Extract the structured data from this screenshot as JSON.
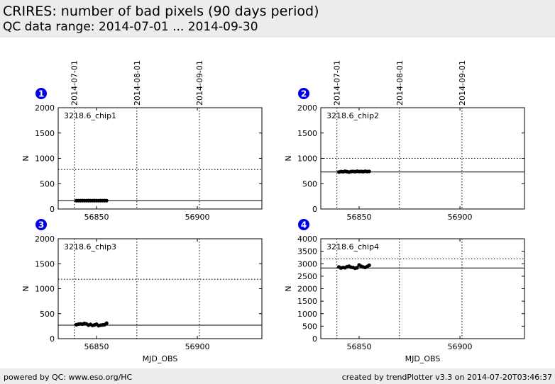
{
  "header": {
    "title": "CRIRES: number of bad pixels (90 days period)",
    "subtitle": "QC data range: 2014-07-01 ... 2014-09-30"
  },
  "footer": {
    "left": "powered by QC: www.eso.org/HC",
    "right": "created by trendPlotter v3.3 on 2014-07-20T03:46:37"
  },
  "colors": {
    "marker": "#000000",
    "badge": "#0000ee",
    "header_bg": "#ececec"
  },
  "chart_data": [
    {
      "type": "scatter",
      "panel": "1",
      "label": "3218.6_chip1",
      "xlabel": "",
      "ylabel": "N",
      "xlim": [
        56831,
        56932
      ],
      "ylim": [
        0,
        2000
      ],
      "yticks": [
        0,
        500,
        1000,
        1500,
        2000
      ],
      "xticks": [
        56850,
        56900
      ],
      "date_marks": [
        {
          "x": 56839,
          "label": "2014-07-01"
        },
        {
          "x": 56870,
          "label": "2014-08-01"
        },
        {
          "x": 56901,
          "label": "2014-09-01"
        }
      ],
      "reference_line": 165,
      "threshold_line": 780,
      "x": [
        56840,
        56841,
        56842,
        56843,
        56844,
        56845,
        56846,
        56847,
        56848,
        56849,
        56850,
        56851,
        56852,
        56853,
        56854,
        56855
      ],
      "y": [
        165,
        165,
        165,
        166,
        165,
        165,
        166,
        165,
        165,
        166,
        165,
        165,
        166,
        165,
        166,
        165
      ]
    },
    {
      "type": "scatter",
      "panel": "2",
      "label": "3218.6_chip2",
      "xlabel": "",
      "ylabel": "N",
      "xlim": [
        56831,
        56932
      ],
      "ylim": [
        0,
        2000
      ],
      "yticks": [
        0,
        500,
        1000,
        1500,
        2000
      ],
      "xticks": [
        56850,
        56900
      ],
      "date_marks": [
        {
          "x": 56839,
          "label": "2014-07-01"
        },
        {
          "x": 56870,
          "label": "2014-08-01"
        },
        {
          "x": 56901,
          "label": "2014-09-01"
        }
      ],
      "reference_line": 730,
      "threshold_line": 1000,
      "x": [
        56840,
        56841,
        56842,
        56843,
        56844,
        56845,
        56846,
        56847,
        56848,
        56849,
        56850,
        56851,
        56852,
        56853,
        56854,
        56855
      ],
      "y": [
        730,
        740,
        735,
        745,
        738,
        730,
        740,
        742,
        738,
        745,
        740,
        742,
        738,
        745,
        740,
        742
      ]
    },
    {
      "type": "scatter",
      "panel": "3",
      "label": "3218.6_chip3",
      "xlabel": "MJD_OBS",
      "ylabel": "N",
      "xlim": [
        56831,
        56932
      ],
      "ylim": [
        0,
        2000
      ],
      "yticks": [
        0,
        500,
        1000,
        1500,
        2000
      ],
      "xticks": [
        56850,
        56900
      ],
      "date_marks": [
        {
          "x": 56839,
          "label": "2014-07-01"
        },
        {
          "x": 56870,
          "label": "2014-08-01"
        },
        {
          "x": 56901,
          "label": "2014-09-01"
        }
      ],
      "reference_line": 270,
      "threshold_line": 1190,
      "x": [
        56840,
        56841,
        56842,
        56843,
        56844,
        56845,
        56846,
        56847,
        56848,
        56849,
        56850,
        56851,
        56852,
        56853,
        56854,
        56855
      ],
      "y": [
        280,
        290,
        295,
        290,
        305,
        295,
        270,
        285,
        265,
        275,
        290,
        260,
        270,
        275,
        280,
        310
      ]
    },
    {
      "type": "scatter",
      "panel": "4",
      "label": "3218.6_chip4",
      "xlabel": "MJD_OBS",
      "ylabel": "N",
      "xlim": [
        56831,
        56932
      ],
      "ylim": [
        0,
        4000
      ],
      "yticks": [
        0,
        500,
        1000,
        1500,
        2000,
        2500,
        3000,
        3500,
        4000
      ],
      "xticks": [
        56850,
        56900
      ],
      "date_marks": [
        {
          "x": 56839,
          "label": "2014-07-01"
        },
        {
          "x": 56870,
          "label": "2014-08-01"
        },
        {
          "x": 56901,
          "label": "2014-09-01"
        }
      ],
      "reference_line": 2830,
      "threshold_line": 3200,
      "x": [
        56840,
        56841,
        56842,
        56843,
        56844,
        56845,
        56846,
        56847,
        56848,
        56849,
        56850,
        56851,
        56852,
        56853,
        56854,
        56855
      ],
      "y": [
        2870,
        2830,
        2850,
        2840,
        2880,
        2900,
        2860,
        2850,
        2820,
        2840,
        2950,
        2900,
        2870,
        2850,
        2890,
        2940
      ]
    }
  ]
}
